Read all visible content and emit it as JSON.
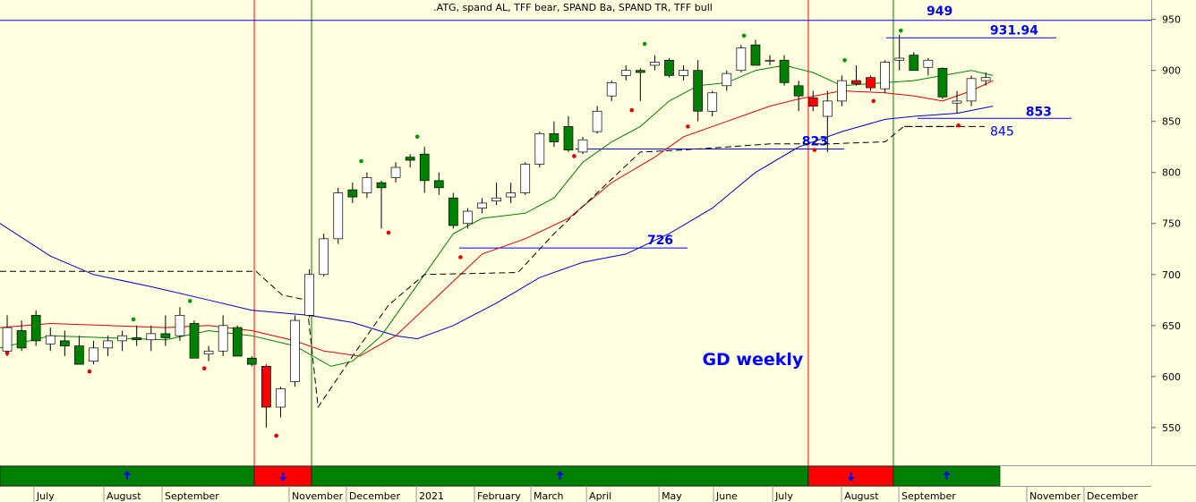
{
  "chart_data": {
    "type": "candlestick",
    "title": ".ATG, spand AL, TFF bear, SPAND Ba, SPAND TR, TFF bull",
    "annotation": {
      "text": "GD weekly",
      "x": 48.3,
      "y": 611
    },
    "xlim": [
      -0.5,
      79.5
    ],
    "ylim": [
      513,
      969
    ],
    "yticks": [
      550,
      600,
      650,
      700,
      750,
      800,
      850,
      900,
      950
    ],
    "xticks": [
      {
        "value": 1.86,
        "label": "July"
      },
      {
        "value": 6.72,
        "label": "August"
      },
      {
        "value": 10.76,
        "label": "September"
      },
      {
        "value": 19.59,
        "label": "November"
      },
      {
        "value": 23.57,
        "label": "December"
      },
      {
        "value": 28.43,
        "label": "2021"
      },
      {
        "value": 32.47,
        "label": "February"
      },
      {
        "value": 36.39,
        "label": "March"
      },
      {
        "value": 40.25,
        "label": "April"
      },
      {
        "value": 45.29,
        "label": "May"
      },
      {
        "value": 49.08,
        "label": "June"
      },
      {
        "value": 53.19,
        "label": "July"
      },
      {
        "value": 57.98,
        "label": "August"
      },
      {
        "value": 61.96,
        "label": "September"
      },
      {
        "value": 70.85,
        "label": "November"
      },
      {
        "value": 74.83,
        "label": "December"
      }
    ],
    "candles": {
      "x": [
        0,
        1,
        2,
        3,
        4,
        5,
        6,
        7,
        8,
        9,
        10,
        11,
        12,
        13,
        14,
        15,
        16,
        17,
        18,
        19,
        20,
        21,
        22,
        23,
        24,
        25,
        26,
        27,
        28,
        29,
        30,
        31,
        32,
        33,
        34,
        35,
        36,
        37,
        38,
        39,
        40,
        41,
        42,
        43,
        44,
        45,
        46,
        47,
        48,
        49,
        50,
        51,
        52,
        53,
        54,
        55,
        56,
        57,
        58,
        59,
        60,
        61,
        62,
        63,
        64,
        65,
        66,
        67,
        68
      ],
      "open": [
        625,
        645,
        660,
        632,
        635,
        630,
        615,
        628,
        635,
        638,
        636,
        642,
        640,
        652,
        622,
        625,
        648,
        618,
        610,
        570,
        595,
        660,
        700,
        735,
        783,
        780,
        790,
        795,
        815,
        818,
        792,
        775,
        750,
        765,
        772,
        776,
        780,
        808,
        838,
        845,
        820,
        840,
        875,
        895,
        900,
        905,
        910,
        895,
        900,
        860,
        885,
        900,
        925,
        910,
        910,
        885,
        873,
        855,
        870,
        890,
        893,
        882,
        910,
        915,
        903,
        902,
        868,
        870,
        890
      ],
      "high": [
        660,
        655,
        665,
        648,
        645,
        640,
        635,
        640,
        645,
        650,
        650,
        660,
        668,
        655,
        630,
        660,
        650,
        620,
        612,
        590,
        660,
        705,
        740,
        785,
        790,
        800,
        792,
        810,
        818,
        825,
        800,
        780,
        765,
        775,
        790,
        790,
        810,
        840,
        850,
        855,
        835,
        865,
        890,
        905,
        902,
        915,
        912,
        905,
        910,
        880,
        900,
        925,
        930,
        915,
        915,
        890,
        880,
        880,
        895,
        905,
        895,
        910,
        935,
        918,
        912,
        903,
        880,
        895,
        898
      ],
      "low": [
        620,
        625,
        630,
        625,
        620,
        615,
        612,
        620,
        625,
        630,
        625,
        630,
        635,
        618,
        615,
        620,
        620,
        610,
        550,
        560,
        590,
        658,
        698,
        730,
        770,
        775,
        745,
        790,
        805,
        780,
        778,
        745,
        745,
        760,
        768,
        770,
        778,
        805,
        825,
        820,
        818,
        838,
        870,
        890,
        870,
        900,
        893,
        890,
        850,
        855,
        880,
        898,
        905,
        905,
        885,
        860,
        860,
        820,
        865,
        885,
        880,
        878,
        900,
        900,
        895,
        872,
        858,
        865,
        885
      ],
      "close": [
        648,
        628,
        635,
        640,
        630,
        612,
        628,
        635,
        640,
        636,
        642,
        638,
        660,
        618,
        625,
        650,
        620,
        612,
        570,
        588,
        655,
        700,
        735,
        780,
        776,
        795,
        785,
        805,
        812,
        792,
        785,
        748,
        762,
        770,
        775,
        780,
        808,
        838,
        830,
        822,
        832,
        860,
        888,
        900,
        898,
        908,
        895,
        900,
        860,
        878,
        897,
        922,
        905,
        910,
        888,
        875,
        865,
        870,
        890,
        887,
        883,
        908,
        912,
        900,
        910,
        874,
        870,
        892,
        893
      ]
    },
    "signals": [
      {
        "from": -0.5,
        "to": 17.17,
        "direction": "up",
        "color": "#008000"
      },
      {
        "from": 17.17,
        "to": 21.15,
        "direction": "down",
        "color": "#ff0000"
      },
      {
        "from": 21.15,
        "to": 55.67,
        "direction": "up",
        "color": "#008000"
      },
      {
        "from": 55.67,
        "to": 61.58,
        "direction": "down",
        "color": "#ff0000"
      },
      {
        "from": 61.58,
        "to": 68.99,
        "direction": "up",
        "color": "#008000"
      }
    ],
    "series": [
      {
        "color": "#0000cc",
        "dash": false,
        "x": [
          -0.5,
          3,
          6,
          10,
          14,
          17,
          21,
          24,
          27,
          28.5,
          31,
          34,
          37,
          40,
          43,
          46,
          49,
          52,
          55,
          58,
          61,
          63,
          66,
          68.5
        ],
        "values": [
          750,
          718,
          700,
          688,
          675,
          665,
          660,
          653,
          640,
          637,
          650,
          672,
          697,
          712,
          720,
          740,
          765,
          800,
          825,
          840,
          852,
          855,
          858,
          865
        ]
      },
      {
        "color": "#e00000",
        "dash": false,
        "x": [
          -0.5,
          3,
          7,
          11,
          14,
          17,
          20,
          22,
          24.5,
          27,
          30,
          33,
          36,
          39,
          42,
          45,
          47,
          50,
          53,
          55,
          58,
          61,
          63,
          65,
          67,
          68.5
        ],
        "values": [
          648,
          652,
          650,
          648,
          650,
          645,
          635,
          625,
          620,
          640,
          680,
          720,
          735,
          755,
          790,
          815,
          835,
          850,
          865,
          872,
          880,
          878,
          875,
          870,
          880,
          890
        ]
      },
      {
        "color": "#008000",
        "dash": false,
        "x": [
          -0.5,
          3,
          7,
          11,
          14,
          17,
          20,
          22.5,
          24,
          26,
          28.5,
          31,
          33,
          36,
          38,
          40,
          42,
          44,
          46,
          48,
          50,
          52,
          54,
          56,
          58,
          61,
          63,
          65,
          67,
          68.5
        ],
        "values": [
          628,
          640,
          638,
          636,
          645,
          640,
          630,
          610,
          615,
          640,
          690,
          740,
          755,
          760,
          775,
          810,
          830,
          845,
          870,
          885,
          888,
          900,
          905,
          898,
          885,
          888,
          890,
          895,
          900,
          895
        ]
      },
      {
        "color": "#000000",
        "dash": true,
        "x": [
          -0.5,
          17.3,
          19.1,
          20.8,
          21.6,
          24,
          26.5,
          29,
          35.5,
          38,
          41,
          44,
          47,
          50,
          53,
          57,
          61,
          62.3,
          66
        ],
        "values": [
          703,
          703,
          680,
          675,
          570,
          620,
          670,
          700,
          702,
          740,
          780,
          820,
          822,
          825,
          828,
          828,
          830,
          845,
          845
        ]
      }
    ],
    "levels": [
      {
        "value": 949,
        "from": -0.5,
        "to": 79.5,
        "dash": false
      },
      {
        "value": 931.94,
        "from": 61.09,
        "to": 72.9,
        "dash": false
      },
      {
        "value": 853,
        "from": 63.26,
        "to": 73.96,
        "dash": false
      },
      {
        "value": 845,
        "from": 62.33,
        "to": 67.93,
        "dash": true
      },
      {
        "value": 823,
        "from": 39.5,
        "to": 58.16,
        "dash": false
      },
      {
        "value": 726,
        "from": 31.41,
        "to": 47.28,
        "dash": false
      }
    ],
    "markers": [
      {
        "x": 0,
        "y": 623,
        "color": "#e00000"
      },
      {
        "x": 5.72,
        "y": 605,
        "color": "#e00000"
      },
      {
        "x": 13.7,
        "y": 608,
        "color": "#e00000"
      },
      {
        "x": 18.7,
        "y": 542,
        "color": "#e00000"
      },
      {
        "x": 26.5,
        "y": 741,
        "color": "#e00000"
      },
      {
        "x": 31.5,
        "y": 717,
        "color": "#e00000"
      },
      {
        "x": 39.4,
        "y": 816,
        "color": "#e00000"
      },
      {
        "x": 43.4,
        "y": 861,
        "color": "#e00000"
      },
      {
        "x": 47.3,
        "y": 845,
        "color": "#e00000"
      },
      {
        "x": 56.1,
        "y": 822,
        "color": "#e00000"
      },
      {
        "x": 60.2,
        "y": 870,
        "color": "#e00000"
      },
      {
        "x": 66.1,
        "y": 846,
        "color": "#e00000"
      },
      {
        "x": 8.77,
        "y": 656,
        "color": "#009900"
      },
      {
        "x": 12.7,
        "y": 674,
        "color": "#009900"
      },
      {
        "x": 24.6,
        "y": 811,
        "color": "#009900"
      },
      {
        "x": 28.5,
        "y": 835,
        "color": "#009900"
      },
      {
        "x": 44.3,
        "y": 926,
        "color": "#009900"
      },
      {
        "x": 51.2,
        "y": 934,
        "color": "#009900"
      },
      {
        "x": 58.2,
        "y": 910,
        "color": "#009900"
      },
      {
        "x": 62.1,
        "y": 939,
        "color": "#009900"
      }
    ]
  }
}
